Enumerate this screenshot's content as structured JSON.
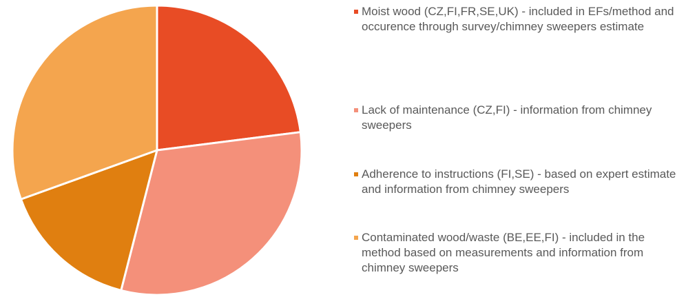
{
  "chart_data": {
    "type": "pie",
    "categories": [
      "Moist wood (CZ,FI,FR,SE,UK) - included in EFs/method and occurence through survey/chimney sweepers estimate",
      "Lack of maintenance (CZ,FI) - information from chimney sweepers",
      "Adherence to instructions (FI,SE) - based on expert estimate and information from chimney sweepers",
      "Contaminated wood/waste (BE,EE,FI) - included in the method based on measurements and information from chimney sweepers"
    ],
    "values": [
      23,
      31,
      15.5,
      30.5
    ],
    "colors": [
      "#e84c25",
      "#f4907a",
      "#e07f10",
      "#f4a54e"
    ],
    "legend": "right"
  }
}
